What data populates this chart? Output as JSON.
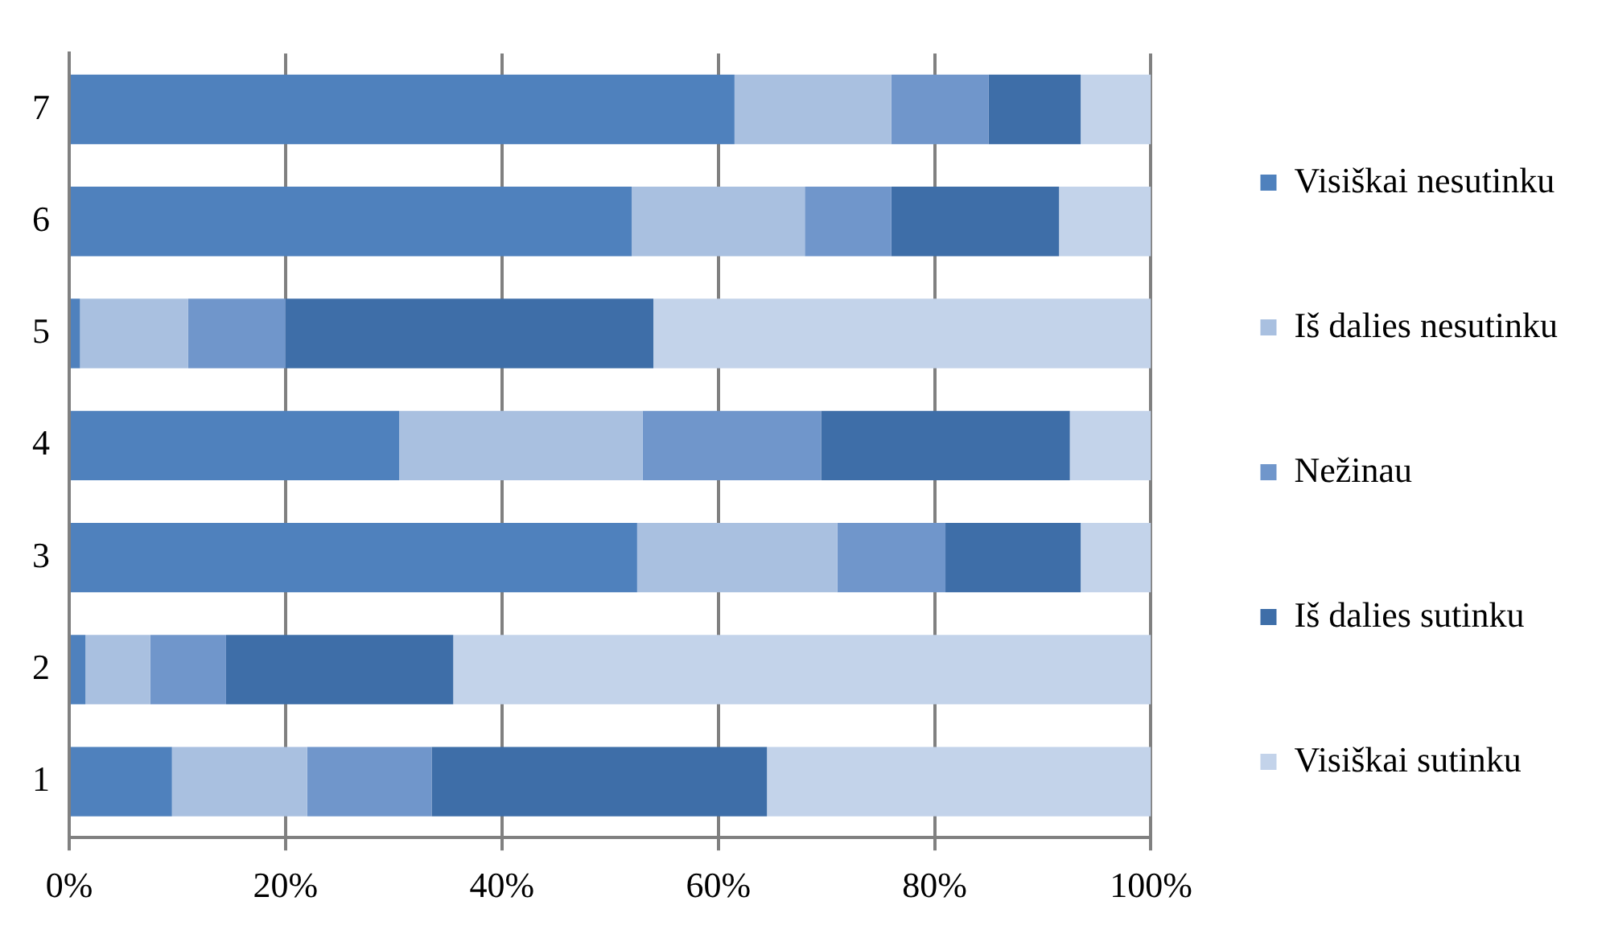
{
  "chart_data": {
    "type": "bar",
    "orientation": "horizontal",
    "stacked": true,
    "categories": [
      "7",
      "6",
      "5",
      "4",
      "3",
      "2",
      "1"
    ],
    "series": [
      {
        "name": "Visiškai nesutinku",
        "color": "#4f81bd",
        "values": [
          61.5,
          52,
          1,
          30.5,
          52.5,
          1.5,
          9.5
        ]
      },
      {
        "name": "Iš dalies nesutinku",
        "color": "#a9c0e0",
        "values": [
          14.5,
          16,
          10,
          22.5,
          18.5,
          6,
          12.5
        ]
      },
      {
        "name": "Nežinau",
        "color": "#7096cb",
        "values": [
          9,
          8,
          9,
          16.5,
          10,
          7,
          11.5
        ]
      },
      {
        "name": "Iš dalies sutinku",
        "color": "#3e6ea8",
        "values": [
          8.5,
          15.5,
          34,
          23,
          12.5,
          21,
          31
        ]
      },
      {
        "name": "Visiškai sutinku",
        "color": "#c3d3ea",
        "values": [
          6.5,
          8.5,
          46,
          7.5,
          6.5,
          64.5,
          35.5
        ]
      }
    ],
    "xlim": [
      0,
      100
    ],
    "xticks": [
      {
        "value": 0,
        "label": "0%"
      },
      {
        "value": 20,
        "label": "20%"
      },
      {
        "value": 40,
        "label": "40%"
      },
      {
        "value": 60,
        "label": "60%"
      },
      {
        "value": 80,
        "label": "80%"
      },
      {
        "value": 100,
        "label": "100%"
      }
    ],
    "grid": "x",
    "legend": "right"
  }
}
